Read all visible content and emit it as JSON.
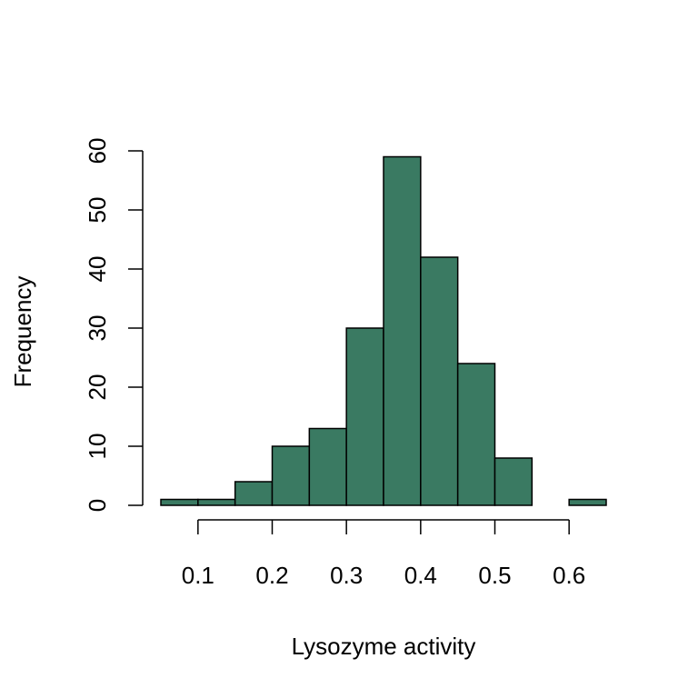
{
  "chart_data": {
    "type": "histogram",
    "title": "",
    "xlabel": "Lysozyme activity",
    "ylabel": "Frequency",
    "bar_color": "#3a7a62",
    "bin_edges": [
      0.05,
      0.1,
      0.15,
      0.2,
      0.25,
      0.3,
      0.35,
      0.4,
      0.45,
      0.5,
      0.55,
      0.6,
      0.65
    ],
    "counts": [
      1,
      1,
      4,
      10,
      13,
      30,
      59,
      42,
      24,
      8,
      0,
      1
    ],
    "xlim": [
      0.05,
      0.65
    ],
    "ylim": [
      0,
      60
    ],
    "x_ticks": [
      0.1,
      0.2,
      0.3,
      0.4,
      0.5,
      0.6
    ],
    "x_tick_labels": [
      "0.1",
      "0.2",
      "0.3",
      "0.4",
      "0.5",
      "0.6"
    ],
    "y_ticks": [
      0,
      10,
      20,
      30,
      40,
      50,
      60
    ],
    "y_tick_labels": [
      "0",
      "10",
      "20",
      "30",
      "40",
      "50",
      "60"
    ],
    "grid": false,
    "legend": "none"
  }
}
